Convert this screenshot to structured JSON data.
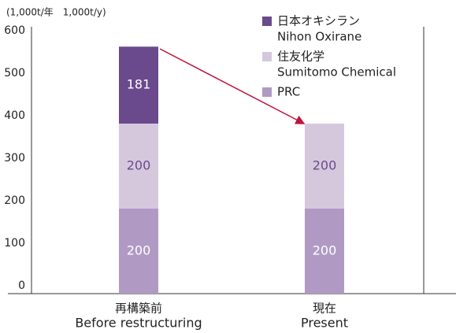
{
  "chart_data": {
    "type": "stacked_bar",
    "y_axis_label": "(1,000t/年　1,000t/y)",
    "categories": [
      "再構築前",
      "現在"
    ],
    "category_subtitles": [
      "Before restructuring",
      "Present"
    ],
    "series": [
      {
        "name": "PRC",
        "color": "#b09ac4",
        "label_color": "#ffffff",
        "values": [
          200,
          200
        ]
      },
      {
        "name": "住友化学",
        "subname": "Sumitomo Chemical",
        "color": "#d5c8dd",
        "label_color": "#6a4a8c",
        "values": [
          200,
          200
        ]
      },
      {
        "name": "日本オキシラン",
        "subname": "Nihon Oxirane",
        "color": "#6a4a8c",
        "label_color": "#ffffff",
        "values": [
          181,
          null
        ]
      }
    ],
    "ylim": [
      0,
      600
    ],
    "yticks": [
      0,
      100,
      200,
      300,
      400,
      500,
      600
    ],
    "grid": false
  }
}
